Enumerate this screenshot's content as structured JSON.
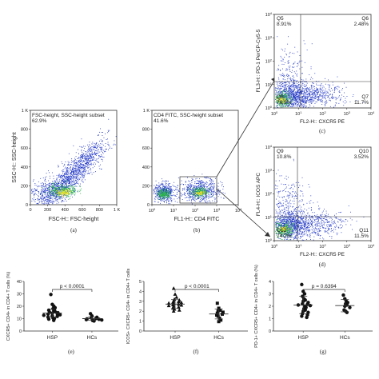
{
  "colors": {
    "axis": "#333333",
    "dot_blue": "#2a3fc8",
    "dot_green": "#29b34a",
    "dot_yellow": "#f2e22a",
    "marker": "#111111"
  },
  "chart_data": [
    {
      "type": "scatter",
      "panel": "(a)",
      "title": "FSC-height, SSC-height subset",
      "gate_percent": "62.9%",
      "xlabel": "FSC-H:: FSC-height",
      "ylabel": "SSC-H:: SSC-height",
      "xticks": [
        "0",
        "200",
        "400",
        "600",
        "800",
        "1 K"
      ],
      "yticks": [
        "0",
        "200",
        "400",
        "600",
        "800",
        "1 K"
      ],
      "xlim": [
        0,
        1000
      ],
      "ylim": [
        0,
        1000
      ]
    },
    {
      "type": "scatter",
      "panel": "(b)",
      "title": "CD4 FITC, SSC-height subset",
      "gate_percent": "41.6%",
      "xlabel": "FL1-H:: CD4 FITC",
      "ylabel": "",
      "xticks": [
        "10^0",
        "10^1",
        "10^2",
        "10^3",
        "10^4"
      ],
      "yticks": [
        "0",
        "200",
        "400",
        "600",
        "800",
        "1 K"
      ],
      "xscale": "log",
      "xlim": [
        1,
        10000
      ],
      "ylim": [
        0,
        1000
      ]
    },
    {
      "type": "scatter",
      "panel": "(c)",
      "xlabel": "FL2-H:: CXCR5 PE",
      "ylabel": "FL3-H:: PD-1 PerCP-Cy5-5",
      "xscale": "log",
      "yscale": "log",
      "xticks": [
        "10^0",
        "10^1",
        "10^2",
        "10^3",
        "10^4"
      ],
      "yticks": [
        "10^0",
        "10^1",
        "10^2",
        "10^3",
        "10^4"
      ],
      "quadrants": [
        {
          "name": "Q5",
          "value": "8.91%",
          "pos": "top-left"
        },
        {
          "name": "Q6",
          "value": "2.48%",
          "pos": "top-right"
        },
        {
          "name": "Q8",
          "value": "76.9%",
          "pos": "bottom-left"
        },
        {
          "name": "Q7",
          "value": "11.7%",
          "pos": "bottom-right"
        }
      ]
    },
    {
      "type": "scatter",
      "panel": "(d)",
      "xlabel": "FL2-H:: CXCR5 PE",
      "ylabel": "FL4-H:: ICOS APC",
      "xscale": "log",
      "yscale": "log",
      "xticks": [
        "10^0",
        "10^1",
        "10^2",
        "10^3",
        "10^4"
      ],
      "yticks": [
        "10^0",
        "10^1",
        "10^2",
        "10^3",
        "10^4"
      ],
      "quadrants": [
        {
          "name": "Q9",
          "value": "10.8%",
          "pos": "top-left"
        },
        {
          "name": "Q10",
          "value": "3.52%",
          "pos": "top-right"
        },
        {
          "name": "Q12",
          "value": "74.2%",
          "pos": "bottom-left"
        },
        {
          "name": "Q11",
          "value": "11.5%",
          "pos": "bottom-right"
        }
      ]
    },
    {
      "type": "scatter",
      "panel": "(e)",
      "ylabel": "CXCR5+ CD4+ in CD4+ T cells (%)",
      "categories": [
        "HSP",
        "HCs"
      ],
      "yticks": [
        "0",
        "10",
        "20",
        "30",
        "40"
      ],
      "ylim": [
        0,
        40
      ],
      "pvalue": "p < 0.0001",
      "series": [
        {
          "name": "HSP",
          "marker": "circle",
          "mean": 14.5,
          "sd": 3.3,
          "values": [
            29.5,
            21.5,
            20.1,
            18.8,
            18.0,
            17.3,
            16.8,
            16.0,
            15.6,
            15.2,
            14.8,
            14.4,
            14.0,
            13.6,
            13.1,
            12.7,
            12.2,
            11.8,
            11.2,
            10.6,
            10.1,
            9.6,
            8.6
          ]
        },
        {
          "name": "HCs",
          "marker": "circle",
          "mean": 10.0,
          "sd": 1.4,
          "values": [
            14.0,
            12.2,
            11.1,
            10.6,
            10.1,
            9.8,
            9.5,
            9.2,
            8.9,
            8.5,
            8.1
          ]
        }
      ]
    },
    {
      "type": "scatter",
      "panel": "(f)",
      "ylabel": "ICOS+ CXCR5+ CD4+ in CD4+ T cells",
      "categories": [
        "HSP",
        "HCs"
      ],
      "yticks": [
        "0",
        "1",
        "2",
        "3",
        "4",
        "5"
      ],
      "ylim": [
        0,
        5
      ],
      "pvalue": "p < 0.0001",
      "series": [
        {
          "name": "HSP",
          "marker": "triangle",
          "mean": 2.72,
          "sd": 0.45,
          "values": [
            4.3,
            3.7,
            3.4,
            3.2,
            3.1,
            3.0,
            2.95,
            2.9,
            2.85,
            2.8,
            2.75,
            2.7,
            2.65,
            2.6,
            2.55,
            2.5,
            2.4,
            2.3,
            2.2,
            2.1,
            2.0
          ]
        },
        {
          "name": "HCs",
          "marker": "square",
          "mean": 1.72,
          "sd": 0.5,
          "values": [
            2.8,
            2.3,
            2.1,
            2.0,
            1.9,
            1.8,
            1.7,
            1.6,
            1.5,
            1.3,
            1.1,
            0.95
          ]
        }
      ]
    },
    {
      "type": "scatter",
      "panel": "(g)",
      "ylabel": "PD-1+ CXCR5+ CD4+ in CD4+ T cells (%)",
      "categories": [
        "HSP",
        "HCs"
      ],
      "yticks": [
        "0",
        "1",
        "2",
        "3",
        "4"
      ],
      "ylim": [
        0,
        4
      ],
      "pvalue": "p = 0.6394",
      "series": [
        {
          "name": "HSP",
          "marker": "circle",
          "mean": 2.1,
          "sd": 0.7,
          "values": [
            3.75,
            3.2,
            3.0,
            2.8,
            2.6,
            2.5,
            2.4,
            2.3,
            2.2,
            2.15,
            2.1,
            2.05,
            2.0,
            1.9,
            1.8,
            1.7,
            1.6,
            1.5,
            1.4,
            1.3,
            1.2,
            1.1
          ]
        },
        {
          "name": "HCs",
          "marker": "circle",
          "mean": 2.05,
          "sd": 0.5,
          "values": [
            2.9,
            2.6,
            2.4,
            2.3,
            2.2,
            2.1,
            2.0,
            1.9,
            1.7,
            1.6,
            1.5
          ]
        }
      ]
    }
  ],
  "labels": {
    "a": "(a)",
    "b": "(b)",
    "c": "(c)",
    "d": "(d)",
    "e": "(e)",
    "f": "(f)",
    "g": "(g)"
  }
}
